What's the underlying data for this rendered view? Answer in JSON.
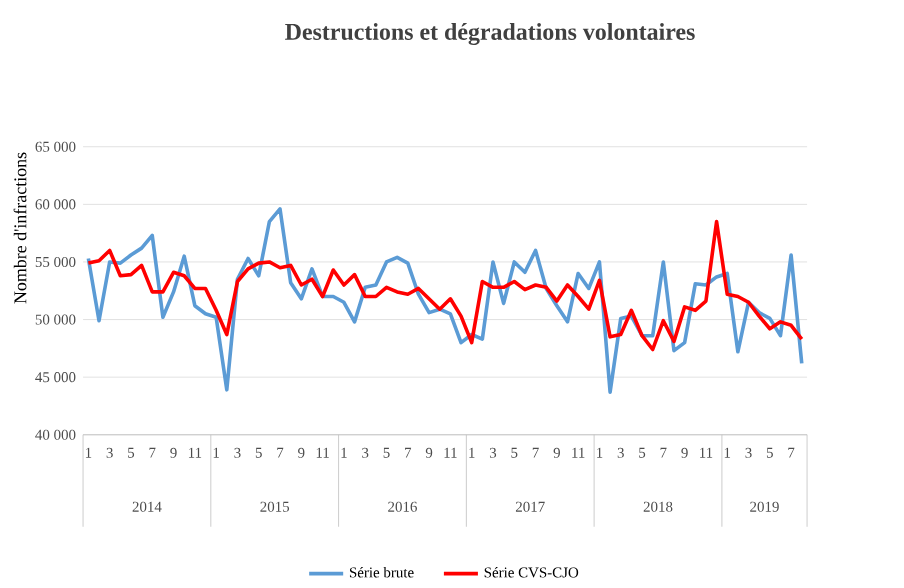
{
  "chart_data": {
    "type": "line",
    "title": "Destructions et dégradations volontaires",
    "ylabel": "Nombre d'infractions",
    "categories": [
      "1",
      null,
      "3",
      null,
      "5",
      null,
      "7",
      null,
      "9",
      null,
      "11",
      null,
      "1",
      null,
      "3",
      null,
      "5",
      null,
      "7",
      null,
      "9",
      null,
      "11",
      null,
      "1",
      null,
      "3",
      null,
      "5",
      null,
      "7",
      null,
      "9",
      null,
      "11",
      null,
      "1",
      null,
      "3",
      null,
      "5",
      null,
      "7",
      null,
      "9",
      null,
      "11",
      null,
      "1",
      null,
      "3",
      null,
      "5",
      null,
      "7",
      null,
      "9",
      null,
      "11",
      null,
      "1",
      null,
      "3",
      null,
      "5",
      null,
      "7",
      null
    ],
    "series": [
      {
        "name": "Série brute",
        "color": "#5b9bd5",
        "values": [
          55300,
          49900,
          55000,
          54900,
          55600,
          56200,
          57300,
          50200,
          52400,
          55500,
          51200,
          50500,
          50200,
          43900,
          53500,
          55300,
          53800,
          58500,
          59600,
          53200,
          51800,
          54400,
          52000,
          52000,
          51500,
          49800,
          52800,
          53000,
          55000,
          55400,
          54900,
          52200,
          50600,
          50900,
          50500,
          48000,
          48700,
          48300,
          55000,
          51400,
          55000,
          54100,
          56000,
          52700,
          51200,
          49800,
          54000,
          52700,
          55000,
          43700,
          50100,
          50300,
          48600,
          48600,
          55000,
          47300,
          48000,
          53100,
          53000,
          53700,
          54000,
          47200,
          51500,
          50600,
          50100,
          48600,
          55600,
          46200
        ]
      },
      {
        "name": "Série CVS-CJO",
        "color": "#ff0000",
        "values": [
          54900,
          55100,
          56000,
          53800,
          53900,
          54700,
          52400,
          52400,
          54100,
          53800,
          52700,
          52700,
          50800,
          48700,
          53300,
          54400,
          54900,
          55000,
          54500,
          54700,
          53000,
          53500,
          52000,
          54300,
          53000,
          53900,
          52000,
          52000,
          52800,
          52400,
          52200,
          52700,
          51800,
          50900,
          51800,
          50300,
          48000,
          53300,
          52800,
          52800,
          53300,
          52600,
          53000,
          52800,
          51600,
          53000,
          52000,
          50900,
          53400,
          48500,
          48700,
          50800,
          48600,
          47400,
          49900,
          48100,
          51100,
          50800,
          51600,
          58500,
          52200,
          52000,
          51500,
          50300,
          49200,
          49800,
          49500,
          48300
        ]
      }
    ],
    "ylim": [
      40000,
      65000
    ],
    "yticks": [
      {
        "value": 40000,
        "label": "40 000"
      },
      {
        "value": 45000,
        "label": "45 000"
      },
      {
        "value": 50000,
        "label": "50 000"
      },
      {
        "value": 55000,
        "label": "55 000"
      },
      {
        "value": 60000,
        "label": "60 000"
      },
      {
        "value": 65000,
        "label": "65 000"
      }
    ],
    "annotations": [
      "2014",
      "2015",
      "2016",
      "2017",
      "2018",
      "2019"
    ],
    "grid": "y",
    "legend": "bottom",
    "marker": "none",
    "line_style": "solid"
  }
}
